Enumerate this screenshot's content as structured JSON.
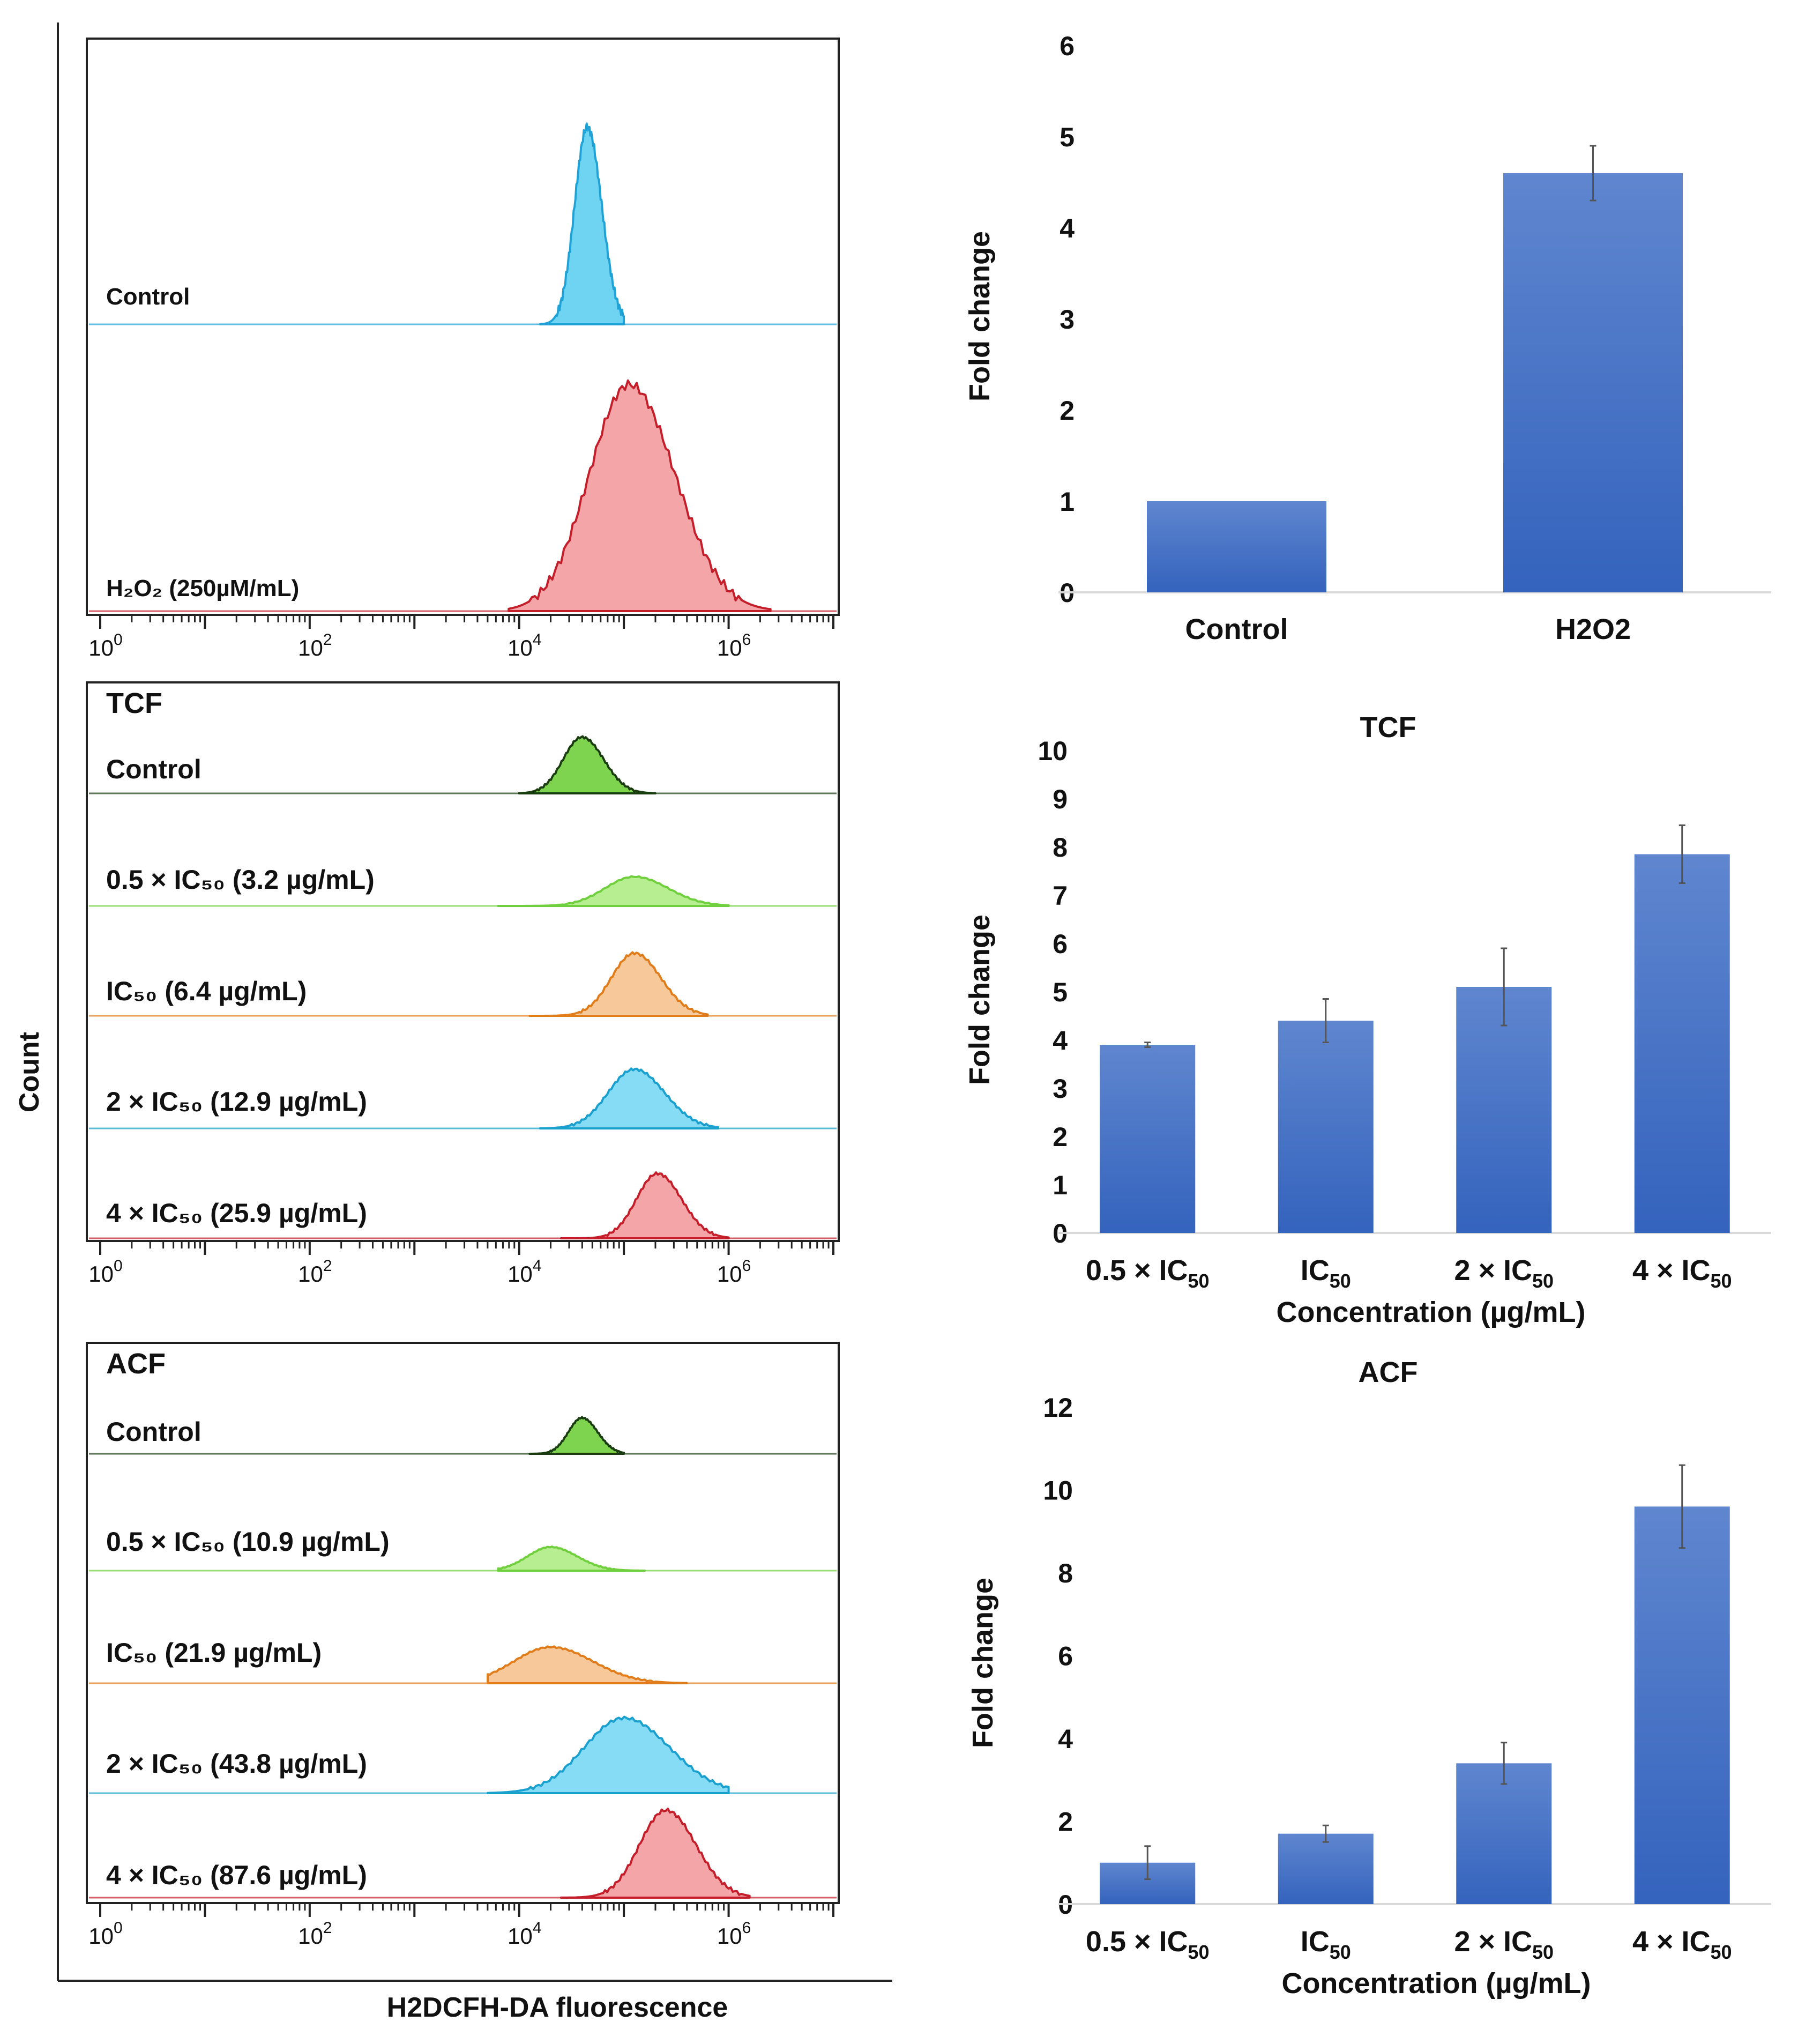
{
  "chart_data": [
    {
      "type": "histogram",
      "title": "",
      "panel_label": "",
      "xlabel": "H2DCFH-DA fluorescence",
      "ylabel": "Count",
      "x_scale": "log10",
      "xlim": [
        0,
        7
      ],
      "x_ticks": [
        {
          "v": 0,
          "b": "10",
          "e": "0"
        },
        {
          "v": 2,
          "b": "10",
          "e": "2"
        },
        {
          "v": 4,
          "b": "10",
          "e": "4"
        },
        {
          "v": 6,
          "b": "10",
          "e": "6"
        }
      ],
      "series": [
        {
          "name": "Control",
          "peak_log": 4.65,
          "sigma_log": 0.12,
          "range": [
            4.2,
            5.0
          ],
          "height": 0.92,
          "fill": "#6fd3f2",
          "line": "#1fa3d6"
        },
        {
          "name": "H₂O₂ (250µM/mL)",
          "peak_log": 5.05,
          "sigma_log": 0.38,
          "range": [
            3.9,
            6.4
          ],
          "height": 0.9,
          "fill": "#f4a5a8",
          "line": "#c41e2a"
        }
      ]
    },
    {
      "type": "histogram",
      "panel_label": "TCF",
      "x_scale": "log10",
      "xlim": [
        0,
        7
      ],
      "x_ticks": [
        {
          "v": 0,
          "b": "10",
          "e": "0"
        },
        {
          "v": 2,
          "b": "10",
          "e": "2"
        },
        {
          "v": 4,
          "b": "10",
          "e": "4"
        },
        {
          "v": 6,
          "b": "10",
          "e": "6"
        }
      ],
      "series": [
        {
          "name": "Control",
          "peak_log": 4.6,
          "sigma_log": 0.18,
          "range": [
            4.0,
            5.3
          ],
          "height": 0.75,
          "fill": "#7fd44f",
          "line": "#1a3d10"
        },
        {
          "name": "0.5 × IC₅₀  (3.2 µg/mL)",
          "peak_log": 5.1,
          "sigma_log": 0.28,
          "range": [
            3.8,
            6.0
          ],
          "height": 0.42,
          "fill": "#b8ee92",
          "line": "#6fcf3c"
        },
        {
          "name": "IC₅₀ (6.4 µg/mL)",
          "peak_log": 5.1,
          "sigma_log": 0.22,
          "range": [
            4.1,
            5.8
          ],
          "height": 0.9,
          "fill": "#f7c89a",
          "line": "#e07c1a"
        },
        {
          "name": "2 × IC₅₀ (12.9 µg/mL)",
          "peak_log": 5.1,
          "sigma_log": 0.25,
          "range": [
            4.2,
            5.9
          ],
          "height": 0.85,
          "fill": "#86dcf4",
          "line": "#1aa0cf"
        },
        {
          "name": "4 × IC₅₀ (25.9 µg/mL)",
          "peak_log": 5.32,
          "sigma_log": 0.2,
          "range": [
            4.4,
            6.0
          ],
          "height": 0.93,
          "fill": "#f4a5a8",
          "line": "#c41e2a"
        }
      ]
    },
    {
      "type": "histogram",
      "panel_label": "ACF",
      "x_scale": "log10",
      "xlim": [
        0,
        7
      ],
      "x_ticks": [
        {
          "v": 0,
          "b": "10",
          "e": "0"
        },
        {
          "v": 2,
          "b": "10",
          "e": "2"
        },
        {
          "v": 4,
          "b": "10",
          "e": "4"
        },
        {
          "v": 6,
          "b": "10",
          "e": "6"
        }
      ],
      "series": [
        {
          "name": "Control",
          "peak_log": 4.6,
          "sigma_log": 0.13,
          "range": [
            4.1,
            5.0
          ],
          "height": 0.6,
          "fill": "#7fd44f",
          "line": "#1a3d10"
        },
        {
          "name": "0.5 × IC₅₀ (10.9 µg/mL)",
          "peak_log": 4.3,
          "sigma_log": 0.22,
          "range": [
            3.8,
            5.2
          ],
          "height": 0.34,
          "fill": "#b8ee92",
          "line": "#6fcf3c"
        },
        {
          "name": "IC₅₀ (21.9 µg/mL)",
          "peak_log": 4.3,
          "sigma_log": 0.35,
          "range": [
            3.7,
            5.6
          ],
          "height": 0.52,
          "fill": "#f7c89a",
          "line": "#e07c1a"
        },
        {
          "name": "2 × IC₅₀ (43.8 µg/mL)",
          "peak_log": 5.0,
          "sigma_log": 0.38,
          "range": [
            3.7,
            6.0
          ],
          "height": 0.85,
          "fill": "#86dcf4",
          "line": "#1aa0cf"
        },
        {
          "name": "4 × IC₅₀ (87.6 µg/mL)",
          "peak_log": 5.4,
          "sigma_log": 0.25,
          "range": [
            4.4,
            6.2
          ],
          "height": 0.96,
          "fill": "#f4a5a8",
          "line": "#c41e2a"
        }
      ]
    },
    {
      "type": "bar",
      "title": "",
      "ylabel": "Fold change",
      "xlabel": "",
      "ylim": [
        0,
        6
      ],
      "yticks": [
        0,
        1,
        2,
        3,
        4,
        5,
        6
      ],
      "categories": [
        "Control",
        "H2O2"
      ],
      "values": [
        1.0,
        4.6
      ],
      "errors": [
        0.0,
        0.3
      ],
      "bar_color": "#4472c4"
    },
    {
      "type": "bar",
      "title": "TCF",
      "ylabel": "Fold change",
      "xlabel": "Concentration (µg/mL)",
      "ylim": [
        0,
        10
      ],
      "yticks": [
        0,
        1,
        2,
        3,
        4,
        5,
        6,
        7,
        8,
        9,
        10
      ],
      "categories": [
        {
          "pre": "0.5 × IC",
          "sub": "50"
        },
        {
          "pre": "IC",
          "sub": "50"
        },
        {
          "pre": "2 × IC",
          "sub": "50"
        },
        {
          "pre": "4 × IC",
          "sub": "50"
        }
      ],
      "values": [
        3.9,
        4.4,
        5.1,
        7.85
      ],
      "errors": [
        0.05,
        0.45,
        0.8,
        0.6
      ],
      "bar_color": "#4472c4"
    },
    {
      "type": "bar",
      "title": "ACF",
      "ylabel": "Fold change",
      "xlabel": "Concentration (µg/mL)",
      "ylim": [
        0,
        12
      ],
      "yticks": [
        0,
        2,
        4,
        6,
        8,
        10,
        12
      ],
      "categories": [
        {
          "pre": "0.5 × IC",
          "sub": "50"
        },
        {
          "pre": "IC",
          "sub": "50"
        },
        {
          "pre": "2 × IC",
          "sub": "50"
        },
        {
          "pre": "4 × IC",
          "sub": "50"
        }
      ],
      "values": [
        1.0,
        1.7,
        3.4,
        9.6
      ],
      "errors": [
        0.4,
        0.2,
        0.5,
        1.0
      ],
      "bar_color": "#4472c4"
    }
  ]
}
